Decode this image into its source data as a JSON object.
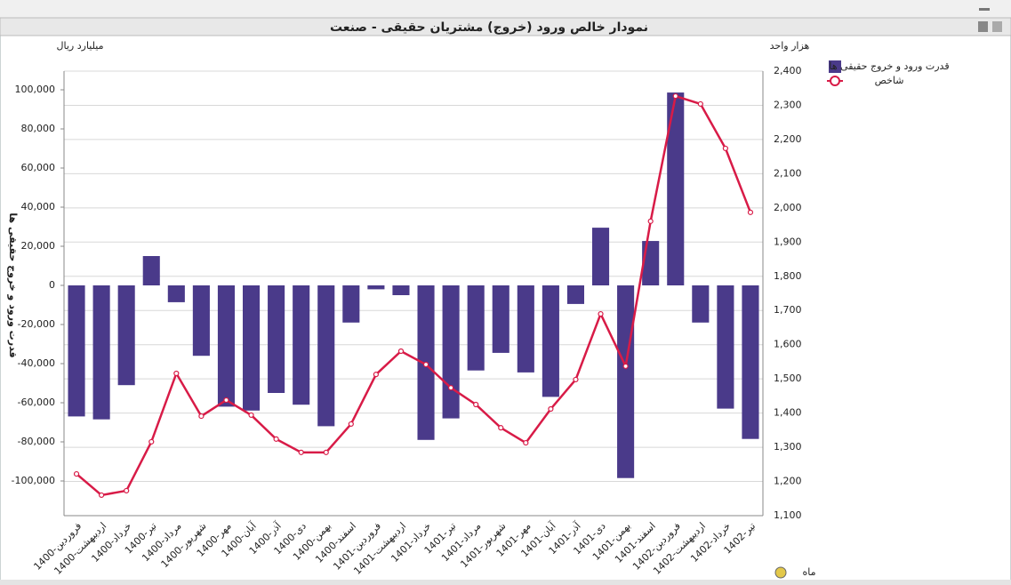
{
  "chart_data": {
    "type": "combo",
    "title": "نمودار خالص ورود (خروج) مشتریان حقیقی - صنعت",
    "y_label": "میلیارد ریال",
    "y2_label": "هزار واحد",
    "y_title": "قدرت ورود و خروج حقیقی ها",
    "x_label": "ماه",
    "categories": [
      "1400-فروردین",
      "1400-اردیبهشت",
      "1400-خرداد",
      "1400-تیر",
      "1400-مرداد",
      "1400-شهریور",
      "1400-مهر",
      "1400-آبان",
      "1400-آذر",
      "1400-دی",
      "1400-بهمن",
      "1400-اسفند",
      "1401-فروردین",
      "1401-اردیبهشت",
      "1401-خرداد",
      "1401-تیر",
      "1401-مرداد",
      "1401-شهریور",
      "1401-مهر",
      "1401-آبان",
      "1401-آذر",
      "1401-دی",
      "1401-بهمن",
      "1401-اسفند",
      "1402-فروردین",
      "1402-اردیبهشت",
      "1402-خرداد",
      "1402-تیر"
    ],
    "series": [
      {
        "name": "قدرت ورود و خروج حقیقی ها",
        "type": "bar",
        "color": "#4a3a8a",
        "values": [
          -67000,
          -68500,
          -51000,
          15000,
          -8600,
          -36000,
          -62000,
          -64000,
          -55000,
          -61000,
          -72000,
          -19000,
          -2000,
          -5000,
          -79000,
          -68000,
          -43500,
          -34500,
          -44500,
          -57000,
          -9500,
          29500,
          -98500,
          22700,
          98600,
          -19000,
          -63000,
          -78500
        ]
      },
      {
        "name": "شاخص",
        "type": "line",
        "axis": "y2",
        "color": "#d81b47",
        "values": [
          1222,
          1160,
          1173,
          1316,
          1516,
          1391,
          1438,
          1394,
          1324,
          1285,
          1285,
          1368,
          1513,
          1581,
          1542,
          1474,
          1425,
          1357,
          1313,
          1412,
          1498,
          1690,
          1537,
          1961,
          2327,
          2304,
          2174,
          1987
        ]
      }
    ],
    "ylim": [
      -117727,
      109545
    ],
    "yticks": [
      {
        "value": -100000,
        "label": "-100,000"
      },
      {
        "value": -80000,
        "label": "-80,000"
      },
      {
        "value": -60000,
        "label": "-60,000"
      },
      {
        "value": -40000,
        "label": "-40,000"
      },
      {
        "value": -20000,
        "label": "-20,000"
      },
      0,
      {
        "value": 20000,
        "label": "20,000"
      },
      {
        "value": 40000,
        "label": "40,000"
      },
      {
        "value": 60000,
        "label": "60,000"
      },
      {
        "value": 80000,
        "label": "80,000"
      },
      {
        "value": 100000,
        "label": "100,000"
      }
    ],
    "y2lim": [
      1100,
      2400
    ],
    "y2ticks": [
      {
        "value": 1100,
        "label": "1,100"
      },
      {
        "value": 1200,
        "label": "1,200"
      },
      {
        "value": 1300,
        "label": "1,300"
      },
      {
        "value": 1400,
        "label": "1,400"
      },
      {
        "value": 1500,
        "label": "1,500"
      },
      {
        "value": 1600,
        "label": "1,600"
      },
      {
        "value": 1700,
        "label": "1,700"
      },
      {
        "value": 1800,
        "label": "1,800"
      },
      {
        "value": 1900,
        "label": "1,900"
      },
      {
        "value": 2000,
        "label": "2,000"
      },
      {
        "value": 2100,
        "label": "2,100"
      },
      {
        "value": 2200,
        "label": "2,200"
      },
      {
        "value": 2300,
        "label": "2,300"
      },
      {
        "value": 2400,
        "label": "2,400"
      }
    ],
    "grid": true,
    "legend": "top-right"
  }
}
